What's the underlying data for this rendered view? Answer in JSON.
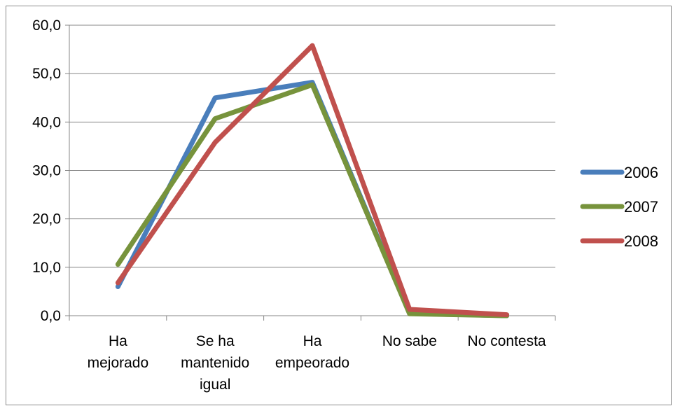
{
  "chart_data": {
    "type": "line",
    "categories": [
      [
        "Ha",
        "mejorado"
      ],
      [
        "Se ha",
        "mantenido",
        "igual"
      ],
      [
        "Ha",
        "empeorado"
      ],
      [
        "No sabe"
      ],
      [
        "No contesta"
      ]
    ],
    "series": [
      {
        "name": "2006",
        "color": "#4a7ebb",
        "values": [
          6.0,
          45.0,
          48.2,
          0.5,
          0.0
        ]
      },
      {
        "name": "2007",
        "color": "#77933c",
        "values": [
          10.6,
          40.7,
          47.7,
          0.4,
          0.0
        ]
      },
      {
        "name": "2008",
        "color": "#c0504d",
        "values": [
          6.8,
          35.8,
          55.8,
          1.3,
          0.2
        ]
      }
    ],
    "ylim": [
      0,
      60
    ],
    "yticks": [
      "0,0",
      "10,0",
      "20,0",
      "30,0",
      "40,0",
      "50,0",
      "60,0"
    ],
    "grid": true,
    "legend_position": "right",
    "title": "",
    "xlabel": "",
    "ylabel": ""
  }
}
